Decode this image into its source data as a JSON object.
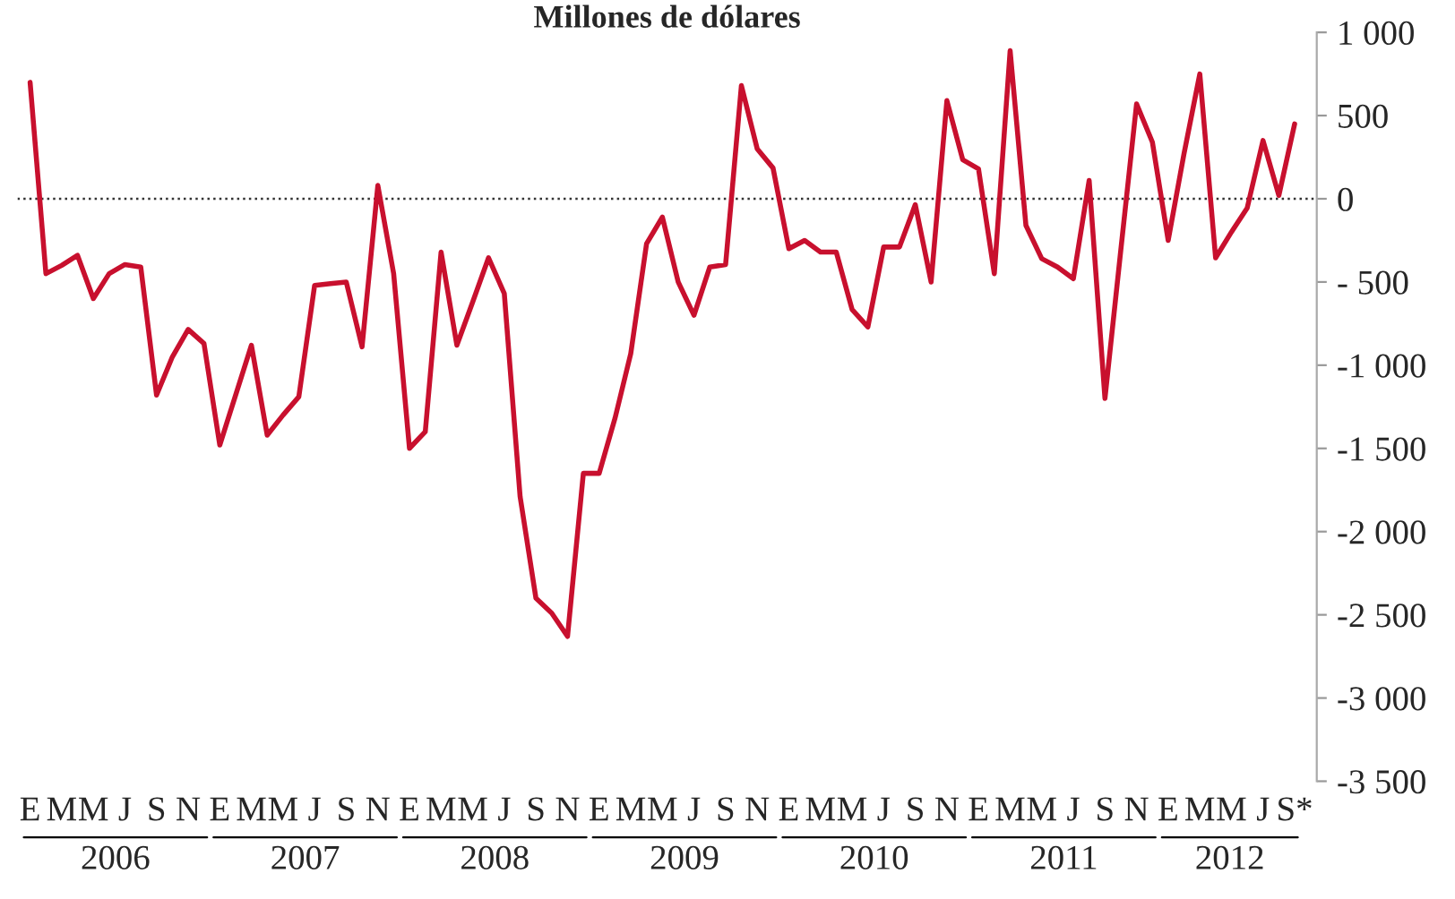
{
  "chart_data": {
    "type": "line",
    "title": "Millones de dólares",
    "categories": [
      "E",
      null,
      "M",
      null,
      "M",
      null,
      "J",
      null,
      "S",
      null,
      "N",
      null,
      "E",
      null,
      "M",
      null,
      "M",
      null,
      "J",
      null,
      "S",
      null,
      "N",
      null,
      "E",
      null,
      "M",
      null,
      "M",
      null,
      "J",
      null,
      "S",
      null,
      "N",
      null,
      "E",
      null,
      "M",
      null,
      "M",
      null,
      "J",
      null,
      "S",
      null,
      "N",
      null,
      "E",
      null,
      "M",
      null,
      "M",
      null,
      "J",
      null,
      "S",
      null,
      "N",
      null,
      "E",
      null,
      "M",
      null,
      "M",
      null,
      "J",
      null,
      "S",
      null,
      "N",
      null,
      "E",
      null,
      "M",
      null,
      "M",
      null,
      "J",
      null,
      "S*"
    ],
    "series": [
      {
        "color": "#c8102e",
        "values": [
          700,
          -450,
          -400,
          -340,
          -600,
          -450,
          -395,
          -410,
          -1180,
          -950,
          -785,
          -870,
          -1480,
          -1180,
          -880,
          -1420,
          -1300,
          -1190,
          -520,
          -510,
          -500,
          -890,
          80,
          -450,
          -1500,
          -1400,
          -320,
          -880,
          -620,
          -355,
          -570,
          -1790,
          -2400,
          -2490,
          -2630,
          -1650,
          -1650,
          -1320,
          -930,
          -270,
          -110,
          -500,
          -700,
          -410,
          -395,
          680,
          300,
          185,
          -300,
          -250,
          -320,
          -320,
          -665,
          -770,
          -290,
          -290,
          -35,
          -500,
          590,
          235,
          180,
          -450,
          890,
          -160,
          -360,
          -410,
          -480,
          110,
          -1200,
          -310,
          570,
          340,
          -250,
          270,
          750,
          -355,
          -200,
          -55,
          350,
          20,
          450
        ]
      }
    ],
    "ylim": [
      -3500,
      1000
    ],
    "yticks": [
      {
        "value": 1000,
        "label": "1 000"
      },
      500,
      0,
      {
        "value": -500,
        "label": "- 500"
      },
      {
        "value": -1000,
        "label": "-1 000"
      },
      {
        "value": -1500,
        "label": "-1 500"
      },
      {
        "value": -2000,
        "label": "-2 000"
      },
      {
        "value": -2500,
        "label": "-2 500"
      },
      {
        "value": -3000,
        "label": "-3 000"
      },
      {
        "value": -3500,
        "label": "-3 500"
      }
    ],
    "ref_lines": [
      {
        "axis": "y",
        "value": 0,
        "color": "#333333",
        "line_style": "dotted"
      }
    ],
    "annotations": [
      "2006",
      "2007",
      "2008",
      "2009",
      "2010",
      "2011",
      "2012"
    ],
    "grid": false,
    "legend": false,
    "marker": "none",
    "line_style": "solid"
  }
}
